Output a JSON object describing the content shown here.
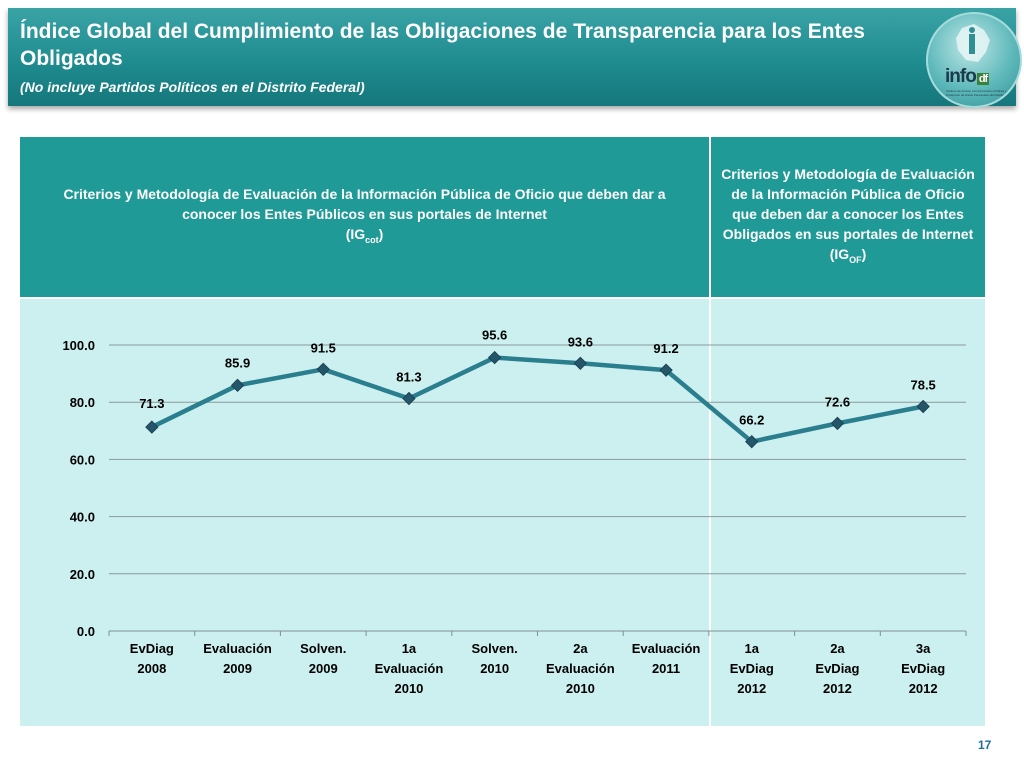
{
  "header": {
    "title": "Índice Global del Cumplimiento de las Obligaciones de Transparencia para los Entes Obligados",
    "subtitle": "(No incluye Partidos Políticos en el Distrito Federal)",
    "logo_text": "info",
    "logo_suffix": "df",
    "logo_caption": "Instituto de Acceso a la Información Pública y Protección de Datos Personales del Distrito Federal"
  },
  "columns": {
    "left_text": "Criterios y Metodología de Evaluación de la Información Pública de Oficio que deben dar a conocer los Entes Públicos en sus portales de Internet",
    "left_index_base": "(IG",
    "left_index_sub": "cot",
    "left_index_close": ")",
    "right_text": "Criterios y Metodología de Evaluación de la Información Pública de Oficio que deben dar a conocer los Entes Obligados en sus portales de Internet",
    "right_index_base": "(IG",
    "right_index_sub": "OF",
    "right_index_close": ")"
  },
  "page_number": "17",
  "colors": {
    "line": "#2a7e8e",
    "marker": "#23566a",
    "header_bg": "#1f9a96",
    "panel_bg": "#ccf0ef"
  },
  "chart_data": {
    "type": "line",
    "categories": [
      [
        "EvDiag",
        "2008"
      ],
      [
        "Evaluación",
        "2009"
      ],
      [
        "Solven.",
        "2009"
      ],
      [
        "1a",
        "Evaluación",
        "2010"
      ],
      [
        "Solven.",
        "2010"
      ],
      [
        "2a",
        "Evaluación",
        "2010"
      ],
      [
        "Evaluación",
        "2011"
      ],
      [
        "1a",
        "EvDiag",
        "2012"
      ],
      [
        "2a",
        "EvDiag",
        "2012"
      ],
      [
        "3a",
        "EvDiag",
        "2012"
      ]
    ],
    "series": [
      {
        "values": [
          71.3,
          85.9,
          91.5,
          81.3,
          95.6,
          93.6,
          91.2,
          66.2,
          72.6,
          78.5
        ]
      }
    ],
    "data_labels": [
      "71.3",
      "85.9",
      "91.5",
      "81.3",
      "95.6",
      "93.6",
      "91.2",
      "66.2",
      "72.6",
      "78.5"
    ],
    "ylim": [
      0,
      100
    ],
    "yticks": [
      "0.0",
      "20.0",
      "40.0",
      "60.0",
      "80.0",
      "100.0"
    ],
    "grid": true,
    "legend": false
  }
}
